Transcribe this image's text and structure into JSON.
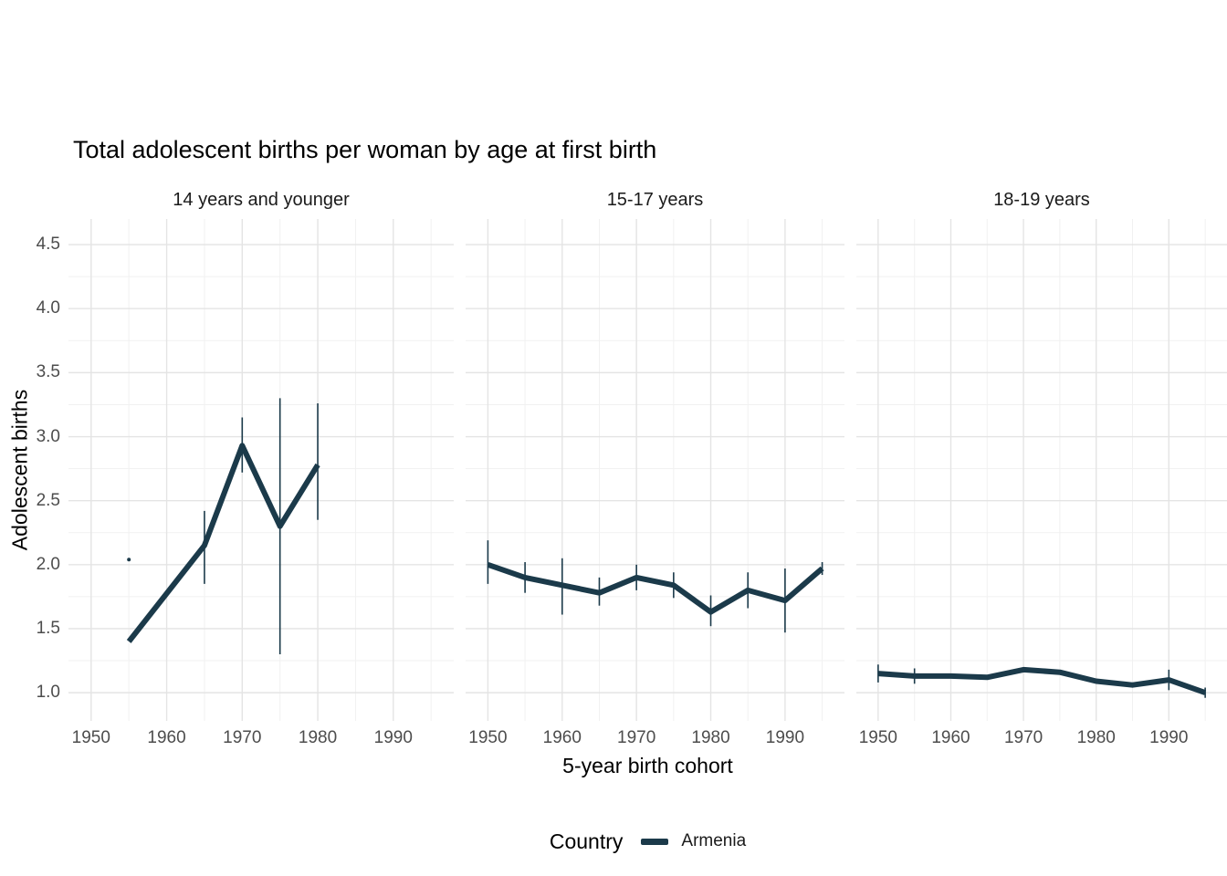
{
  "chart_data": {
    "type": "line",
    "title": "Total adolescent births per woman by age at first birth",
    "xlabel": "5-year birth cohort",
    "ylabel": "Adolescent births",
    "legend": {
      "title": "Country",
      "series_label": "Armenia",
      "position": "bottom"
    },
    "colors": {
      "line": "#1b3a4a",
      "grid_major": "#e4e4e4",
      "grid_minor": "#f1f1f1",
      "tick_text": "#4d4d4d"
    },
    "grid": "on",
    "xlim": [
      1947,
      1998
    ],
    "ylim": [
      0.78,
      4.7
    ],
    "xticks": [
      1950,
      1960,
      1970,
      1980,
      1990
    ],
    "xticks_minor": [
      1955,
      1965,
      1975,
      1985,
      1995
    ],
    "yticks": [
      1.0,
      1.5,
      2.0,
      2.5,
      3.0,
      3.5,
      4.0,
      4.5
    ],
    "yticks_minor": [
      1.25,
      1.75,
      2.25,
      2.75,
      3.25,
      3.75,
      4.25
    ],
    "facets": [
      {
        "label": "14 years and younger",
        "isolated_point": {
          "x": 1955,
          "y": 2.04
        },
        "points": [
          {
            "x": 1955,
            "y": 1.4
          },
          {
            "x": 1965,
            "y": 2.15,
            "lo": 1.85,
            "hi": 2.42
          },
          {
            "x": 1970,
            "y": 2.93,
            "lo": 2.72,
            "hi": 3.15
          },
          {
            "x": 1975,
            "y": 2.3,
            "lo": 1.3,
            "hi": 3.3
          },
          {
            "x": 1980,
            "y": 2.78,
            "lo": 2.35,
            "hi": 3.26
          }
        ]
      },
      {
        "label": "15-17 years",
        "points": [
          {
            "x": 1950,
            "y": 2.0,
            "lo": 1.85,
            "hi": 2.19
          },
          {
            "x": 1955,
            "y": 1.9,
            "lo": 1.78,
            "hi": 2.02
          },
          {
            "x": 1960,
            "y": 1.84,
            "lo": 1.61,
            "hi": 2.05
          },
          {
            "x": 1965,
            "y": 1.78,
            "lo": 1.68,
            "hi": 1.9
          },
          {
            "x": 1970,
            "y": 1.9,
            "lo": 1.8,
            "hi": 2.0
          },
          {
            "x": 1975,
            "y": 1.84,
            "lo": 1.74,
            "hi": 1.94
          },
          {
            "x": 1980,
            "y": 1.63,
            "lo": 1.52,
            "hi": 1.76
          },
          {
            "x": 1985,
            "y": 1.8,
            "lo": 1.66,
            "hi": 1.94
          },
          {
            "x": 1990,
            "y": 1.72,
            "lo": 1.47,
            "hi": 1.97
          },
          {
            "x": 1995,
            "y": 1.97,
            "lo": 1.92,
            "hi": 2.02
          }
        ]
      },
      {
        "label": "18-19 years",
        "points": [
          {
            "x": 1950,
            "y": 1.15,
            "lo": 1.08,
            "hi": 1.22
          },
          {
            "x": 1955,
            "y": 1.13,
            "lo": 1.07,
            "hi": 1.19
          },
          {
            "x": 1960,
            "y": 1.13
          },
          {
            "x": 1965,
            "y": 1.12
          },
          {
            "x": 1970,
            "y": 1.18
          },
          {
            "x": 1975,
            "y": 1.16
          },
          {
            "x": 1980,
            "y": 1.09
          },
          {
            "x": 1985,
            "y": 1.06
          },
          {
            "x": 1990,
            "y": 1.1,
            "lo": 1.02,
            "hi": 1.18
          },
          {
            "x": 1995,
            "y": 1.0,
            "lo": 0.96,
            "hi": 1.04
          }
        ]
      }
    ]
  }
}
